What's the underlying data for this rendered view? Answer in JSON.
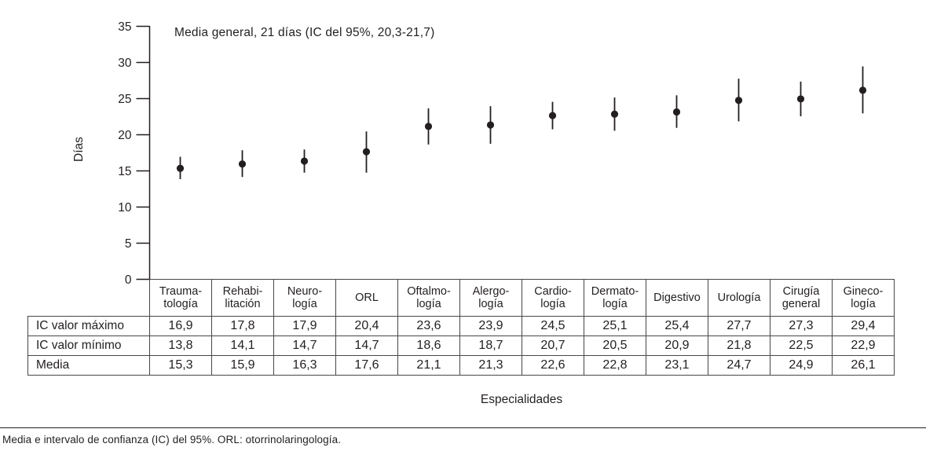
{
  "chart_data": {
    "type": "scatter",
    "annotation": "Media general, 21 días (IC del 95%, 20,3-21,7)",
    "ylabel": "Días",
    "xlabel": "Especialidades",
    "ylim": [
      0,
      35
    ],
    "yticks": [
      0,
      5,
      10,
      15,
      20,
      25,
      30,
      35
    ],
    "grid": false,
    "legend_position": "none",
    "categories": [
      "Traumatología",
      "Rehabilitación",
      "Neurología",
      "ORL",
      "Oftalmología",
      "Alergología",
      "Cardiología",
      "Dermatología",
      "Digestivo",
      "Urología",
      "Cirugía general",
      "Ginecología"
    ],
    "category_header_lines": [
      [
        "Trauma-",
        "tología"
      ],
      [
        "Rehabi-",
        "litación"
      ],
      [
        "Neuro-",
        "logía"
      ],
      [
        "ORL"
      ],
      [
        "Oftalmo-",
        "logía"
      ],
      [
        "Alergo-",
        "logía"
      ],
      [
        "Cardio-",
        "logía"
      ],
      [
        "Dermato-",
        "logía"
      ],
      [
        "Digestivo"
      ],
      [
        "Urología"
      ],
      [
        "Cirugía",
        "general"
      ],
      [
        "Gineco-",
        "logía"
      ]
    ],
    "series": [
      {
        "name": "IC valor máximo",
        "values": [
          16.9,
          17.8,
          17.9,
          20.4,
          23.6,
          23.9,
          24.5,
          25.1,
          25.4,
          27.7,
          27.3,
          29.4
        ]
      },
      {
        "name": "IC valor mínimo",
        "values": [
          13.8,
          14.1,
          14.7,
          14.7,
          18.6,
          18.7,
          20.7,
          20.5,
          20.9,
          21.8,
          22.5,
          22.9
        ]
      },
      {
        "name": "Media",
        "values": [
          15.3,
          15.9,
          16.3,
          17.6,
          21.1,
          21.3,
          22.6,
          22.8,
          23.1,
          24.7,
          24.9,
          26.1
        ]
      }
    ],
    "decimal_separator": ","
  },
  "footnote": "Media e intervalo de confianza (IC) del 95%. ORL: otorrinolaringología.",
  "colors": {
    "ink": "#231f20",
    "background": "#ffffff"
  }
}
